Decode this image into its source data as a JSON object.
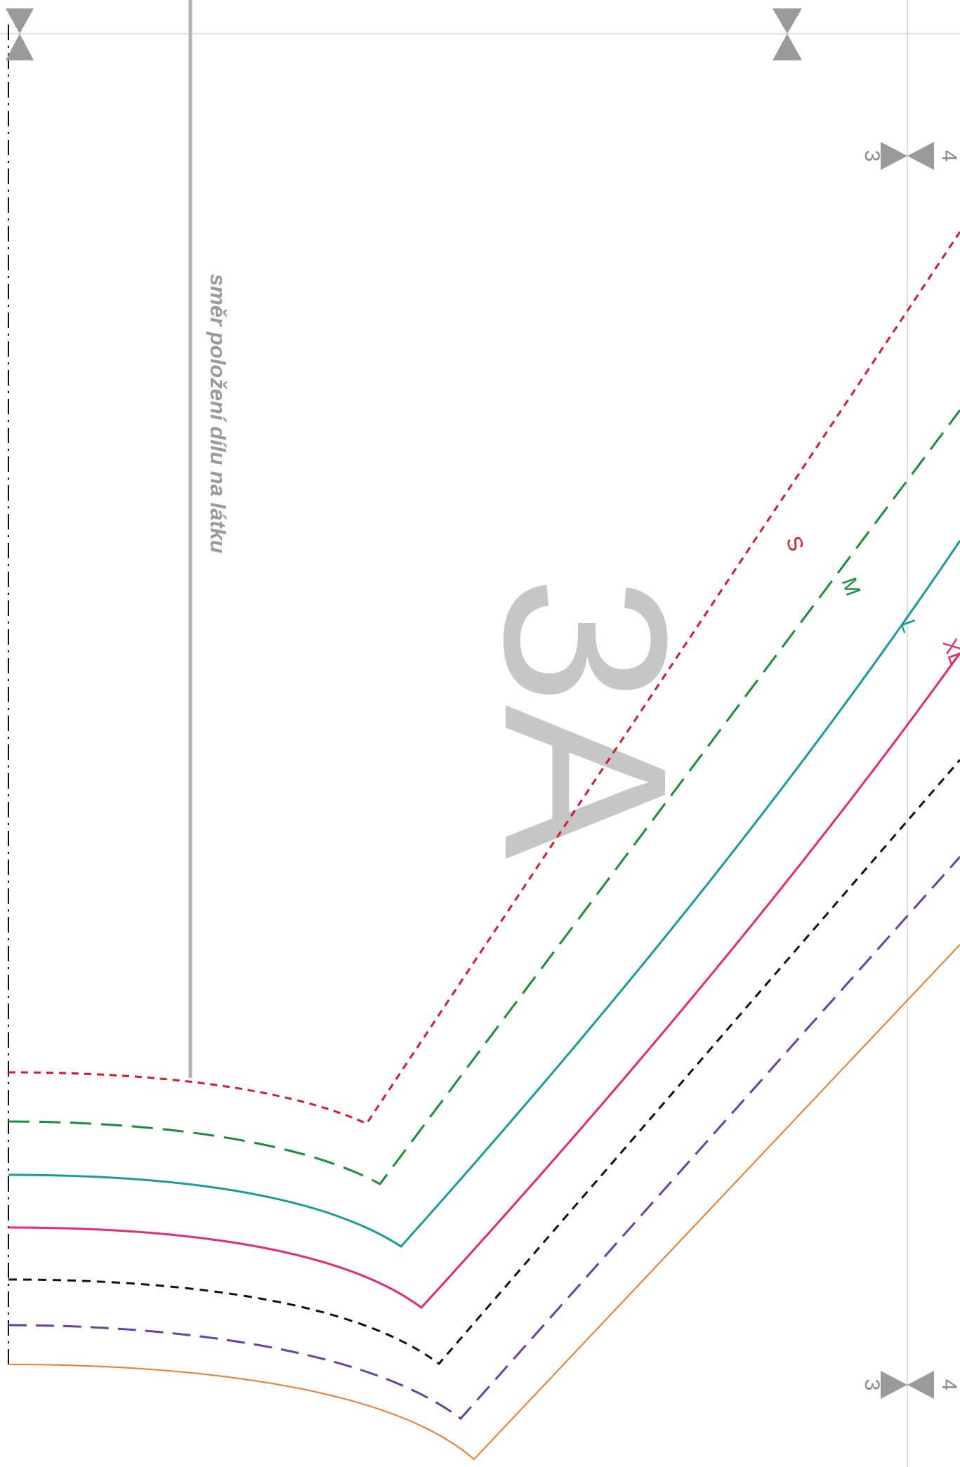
{
  "pattern": {
    "piece_label": "3A",
    "grainline_text": "směr položení dílu na látku",
    "page_marks": {
      "top_left": [
        "3",
        "4"
      ],
      "bottom_left": [
        "3",
        "4"
      ]
    },
    "size_labels": {
      "S": "S",
      "M": "M",
      "L": "L",
      "XL": "XL"
    }
  },
  "colors": {
    "red": "#d7192f",
    "green": "#1a8c3a",
    "teal": "#1a9b9b",
    "pink": "#e3297a",
    "black": "#111111",
    "purple": "#6b3fa0",
    "orange": "#ec7a2b",
    "gray": "#b2b2b2"
  }
}
